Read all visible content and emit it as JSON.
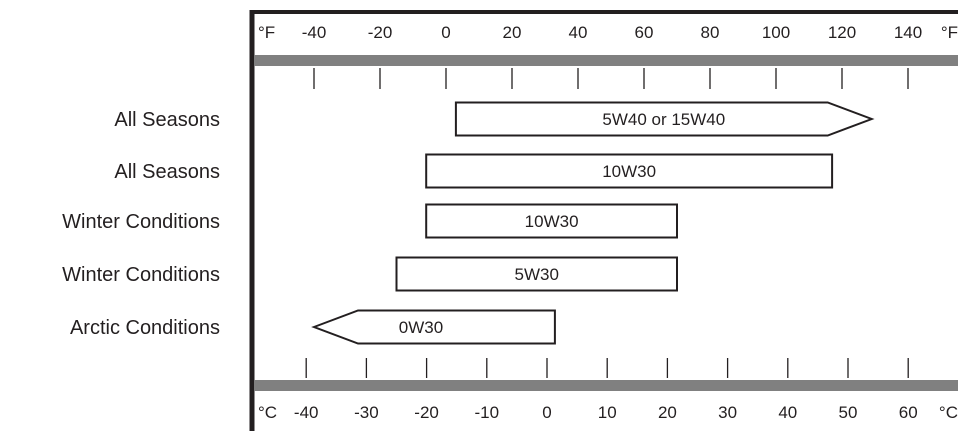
{
  "chart_data": {
    "type": "bar",
    "title": "",
    "orientation": "horizontal-range",
    "top_axis": {
      "unit_left": "°F",
      "unit_right": "°F",
      "ticks": [
        "-40",
        "-20",
        "0",
        "20",
        "40",
        "60",
        "80",
        "100",
        "120",
        "140"
      ],
      "range": [
        -48,
        150
      ]
    },
    "bottom_axis": {
      "unit_left": "°C",
      "unit_right": "°C",
      "ticks": [
        "-40",
        "-30",
        "-20",
        "-10",
        "0",
        "10",
        "20",
        "30",
        "40",
        "50",
        "60"
      ],
      "range": [
        -44.4,
        65.6
      ]
    },
    "categories": [
      "All Seasons",
      "All Seasons",
      "Winter Conditions",
      "Winter Conditions",
      "Arctic Conditions"
    ],
    "bars": [
      {
        "label": "5W40 or 15W40",
        "start_f": 3,
        "end_f": 129,
        "arrow": "right"
      },
      {
        "label": "10W30",
        "start_f": -6,
        "end_f": 117,
        "arrow": "none"
      },
      {
        "label": "10W30",
        "start_f": -6,
        "end_f": 70,
        "arrow": "none"
      },
      {
        "label": "5W30",
        "start_f": -15,
        "end_f": 70,
        "arrow": "none"
      },
      {
        "label": "0W30",
        "start_f": -40,
        "end_f": 33,
        "arrow": "left"
      }
    ],
    "grid": false,
    "colors": {
      "line": "#231f20",
      "band": "#808080",
      "bar_fill": "#ffffff"
    }
  }
}
